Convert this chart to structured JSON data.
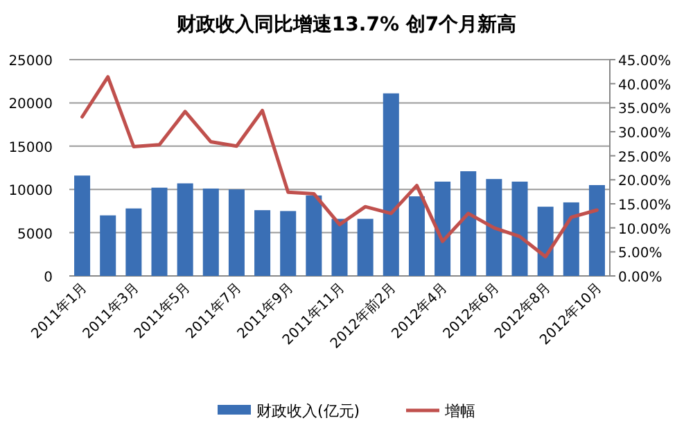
{
  "chart_data": {
    "type": "bar",
    "title": "财政收入同比增速13.7% 创7个月新高",
    "categories": [
      "2011年1月",
      null,
      "2011年3月",
      null,
      "2011年5月",
      null,
      "2011年7月",
      null,
      "2011年9月",
      null,
      "2011年11月",
      null,
      "2012年前2月",
      null,
      "2012年4月",
      null,
      "2012年6月",
      null,
      "2012年8月",
      null,
      "2012年10月"
    ],
    "series": [
      {
        "name": "财政收入(亿元)",
        "color": "#3a6fb5",
        "values": [
          11600,
          7000,
          7800,
          10200,
          10700,
          10100,
          10000,
          7600,
          7500,
          9300,
          6600,
          6600,
          21100,
          9200,
          10900,
          12100,
          11200,
          10900,
          8000,
          8500,
          10500
        ]
      },
      {
        "name": "增幅",
        "type": "line",
        "axis": "y2",
        "color": "#c0504d",
        "values": [
          33.1,
          41.4,
          26.9,
          27.3,
          34.2,
          27.9,
          27.0,
          34.4,
          17.4,
          17.1,
          10.7,
          14.4,
          13.0,
          18.8,
          7.2,
          13.0,
          10.0,
          8.2,
          4.0,
          12.2,
          13.7
        ]
      }
    ],
    "ylim": [
      0,
      25000
    ],
    "yticks": [
      0,
      5000,
      10000,
      15000,
      20000,
      25000
    ],
    "y2lim": [
      0,
      45
    ],
    "y2ticks": [
      {
        "value": 0,
        "label": "0.00%"
      },
      {
        "value": 5,
        "label": "5.00%"
      },
      {
        "value": 10,
        "label": "10.00%"
      },
      {
        "value": 15,
        "label": "15.00%"
      },
      {
        "value": 20,
        "label": "20.00%"
      },
      {
        "value": 25,
        "label": "25.00%"
      },
      {
        "value": 30,
        "label": "30.00%"
      },
      {
        "value": 35,
        "label": "35.00%"
      },
      {
        "value": 40,
        "label": "40.00%"
      },
      {
        "value": 45,
        "label": "45.00%"
      }
    ],
    "grid": "y",
    "legend": "bottom"
  }
}
